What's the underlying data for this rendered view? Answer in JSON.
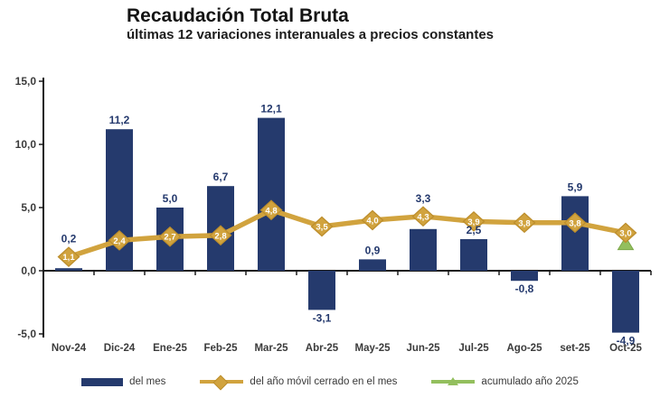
{
  "header": {
    "title": "Recaudación Total Bruta",
    "subtitle": "últimas 12 variaciones interanuales a precios constantes"
  },
  "chart_data": {
    "type": "bar",
    "subtype": "combo-bar-line",
    "title": "Recaudación Total Bruta",
    "subtitle": "últimas 12 variaciones interanuales a precios constantes",
    "categories": [
      "Nov-24",
      "Dic-24",
      "Ene-25",
      "Feb-25",
      "Mar-25",
      "Abr-25",
      "May-25",
      "Jun-25",
      "Jul-25",
      "Ago-25",
      "set-25",
      "Oct-25"
    ],
    "series": [
      {
        "name": "del mes",
        "type": "bar",
        "color": "#253a6d",
        "values": [
          0.2,
          11.2,
          5.0,
          6.7,
          12.1,
          -3.1,
          0.9,
          3.3,
          2.5,
          -0.8,
          5.9,
          -4.9
        ]
      },
      {
        "name": "del año móvil cerrado en el mes",
        "type": "line",
        "marker": "diamond",
        "color": "#d1a33e",
        "marker_stroke": "#bd8e2c",
        "label_color": "#ffffff",
        "values": [
          1.1,
          2.4,
          2.7,
          2.8,
          4.8,
          3.5,
          4.0,
          4.3,
          3.9,
          3.8,
          3.8,
          3.0
        ]
      },
      {
        "name": "acumulado año 2025",
        "type": "point",
        "marker": "triangle",
        "color": "#93bf5e",
        "marker_stroke": "#7ba748",
        "points": [
          {
            "category": "Oct-25",
            "value": 2.1,
            "label_visible": false
          }
        ]
      }
    ],
    "ylim": [
      -5,
      15
    ],
    "yticks": [
      15,
      10,
      5,
      0,
      -5
    ],
    "ytick_labels": [
      "15,0",
      "10,0",
      "5,0",
      "0,0",
      "-5,0"
    ],
    "xlabel": "",
    "ylabel": "",
    "grid": false,
    "legend_position": "bottom",
    "number_format": "comma-decimal",
    "value_label_color": "#24396d",
    "axis_text_color": "#3b3b3b",
    "axis_line_color": "#1a1a1a"
  },
  "legend": {
    "items": [
      {
        "label": "del mes",
        "swatch": "bar",
        "color": "#253a6d"
      },
      {
        "label": "del año móvil cerrado en el mes",
        "swatch": "line-diamond",
        "color": "#d1a33e"
      },
      {
        "label": "acumulado año 2025",
        "swatch": "line-triangle",
        "color": "#93bf5e"
      }
    ]
  }
}
